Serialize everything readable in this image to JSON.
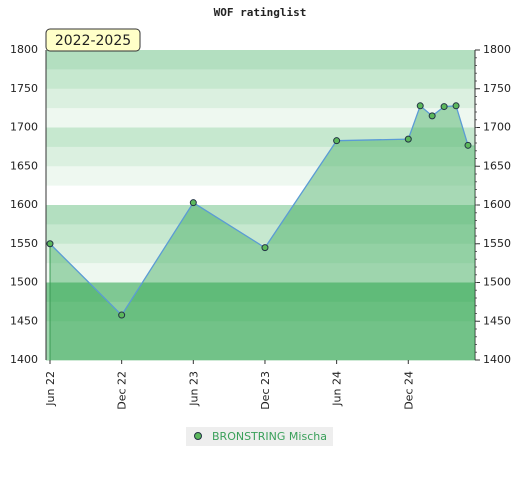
{
  "chart_data": {
    "type": "area",
    "title": "WOF ratinglist",
    "period": "2022-2025",
    "x": [
      "2022-06",
      "2022-12",
      "2023-06",
      "2023-12",
      "2024-06",
      "2024-12",
      "2025-01",
      "2025-02",
      "2025-03",
      "2025-04",
      "2025-05"
    ],
    "series": [
      {
        "name": "BRONSTRING Mischa",
        "color": "#5cb85c",
        "values": [
          1550,
          1458,
          1603,
          1545,
          1683,
          1685,
          1728,
          1715,
          1727,
          1728,
          1677
        ]
      }
    ],
    "xlim": [
      "2022-06",
      "2025-05"
    ],
    "xticks": [
      {
        "value": "2022-06",
        "label": "Jun 22"
      },
      {
        "value": "2022-12",
        "label": "Dec 22"
      },
      {
        "value": "2023-06",
        "label": "Jun 23"
      },
      {
        "value": "2023-12",
        "label": "Dec 23"
      },
      {
        "value": "2024-06",
        "label": "Jun 24"
      },
      {
        "value": "2024-12",
        "label": "Dec 24"
      }
    ],
    "ylim": [
      1400,
      1800
    ],
    "yticks": [
      1400,
      1450,
      1500,
      1550,
      1600,
      1650,
      1700,
      1750,
      1800
    ]
  }
}
